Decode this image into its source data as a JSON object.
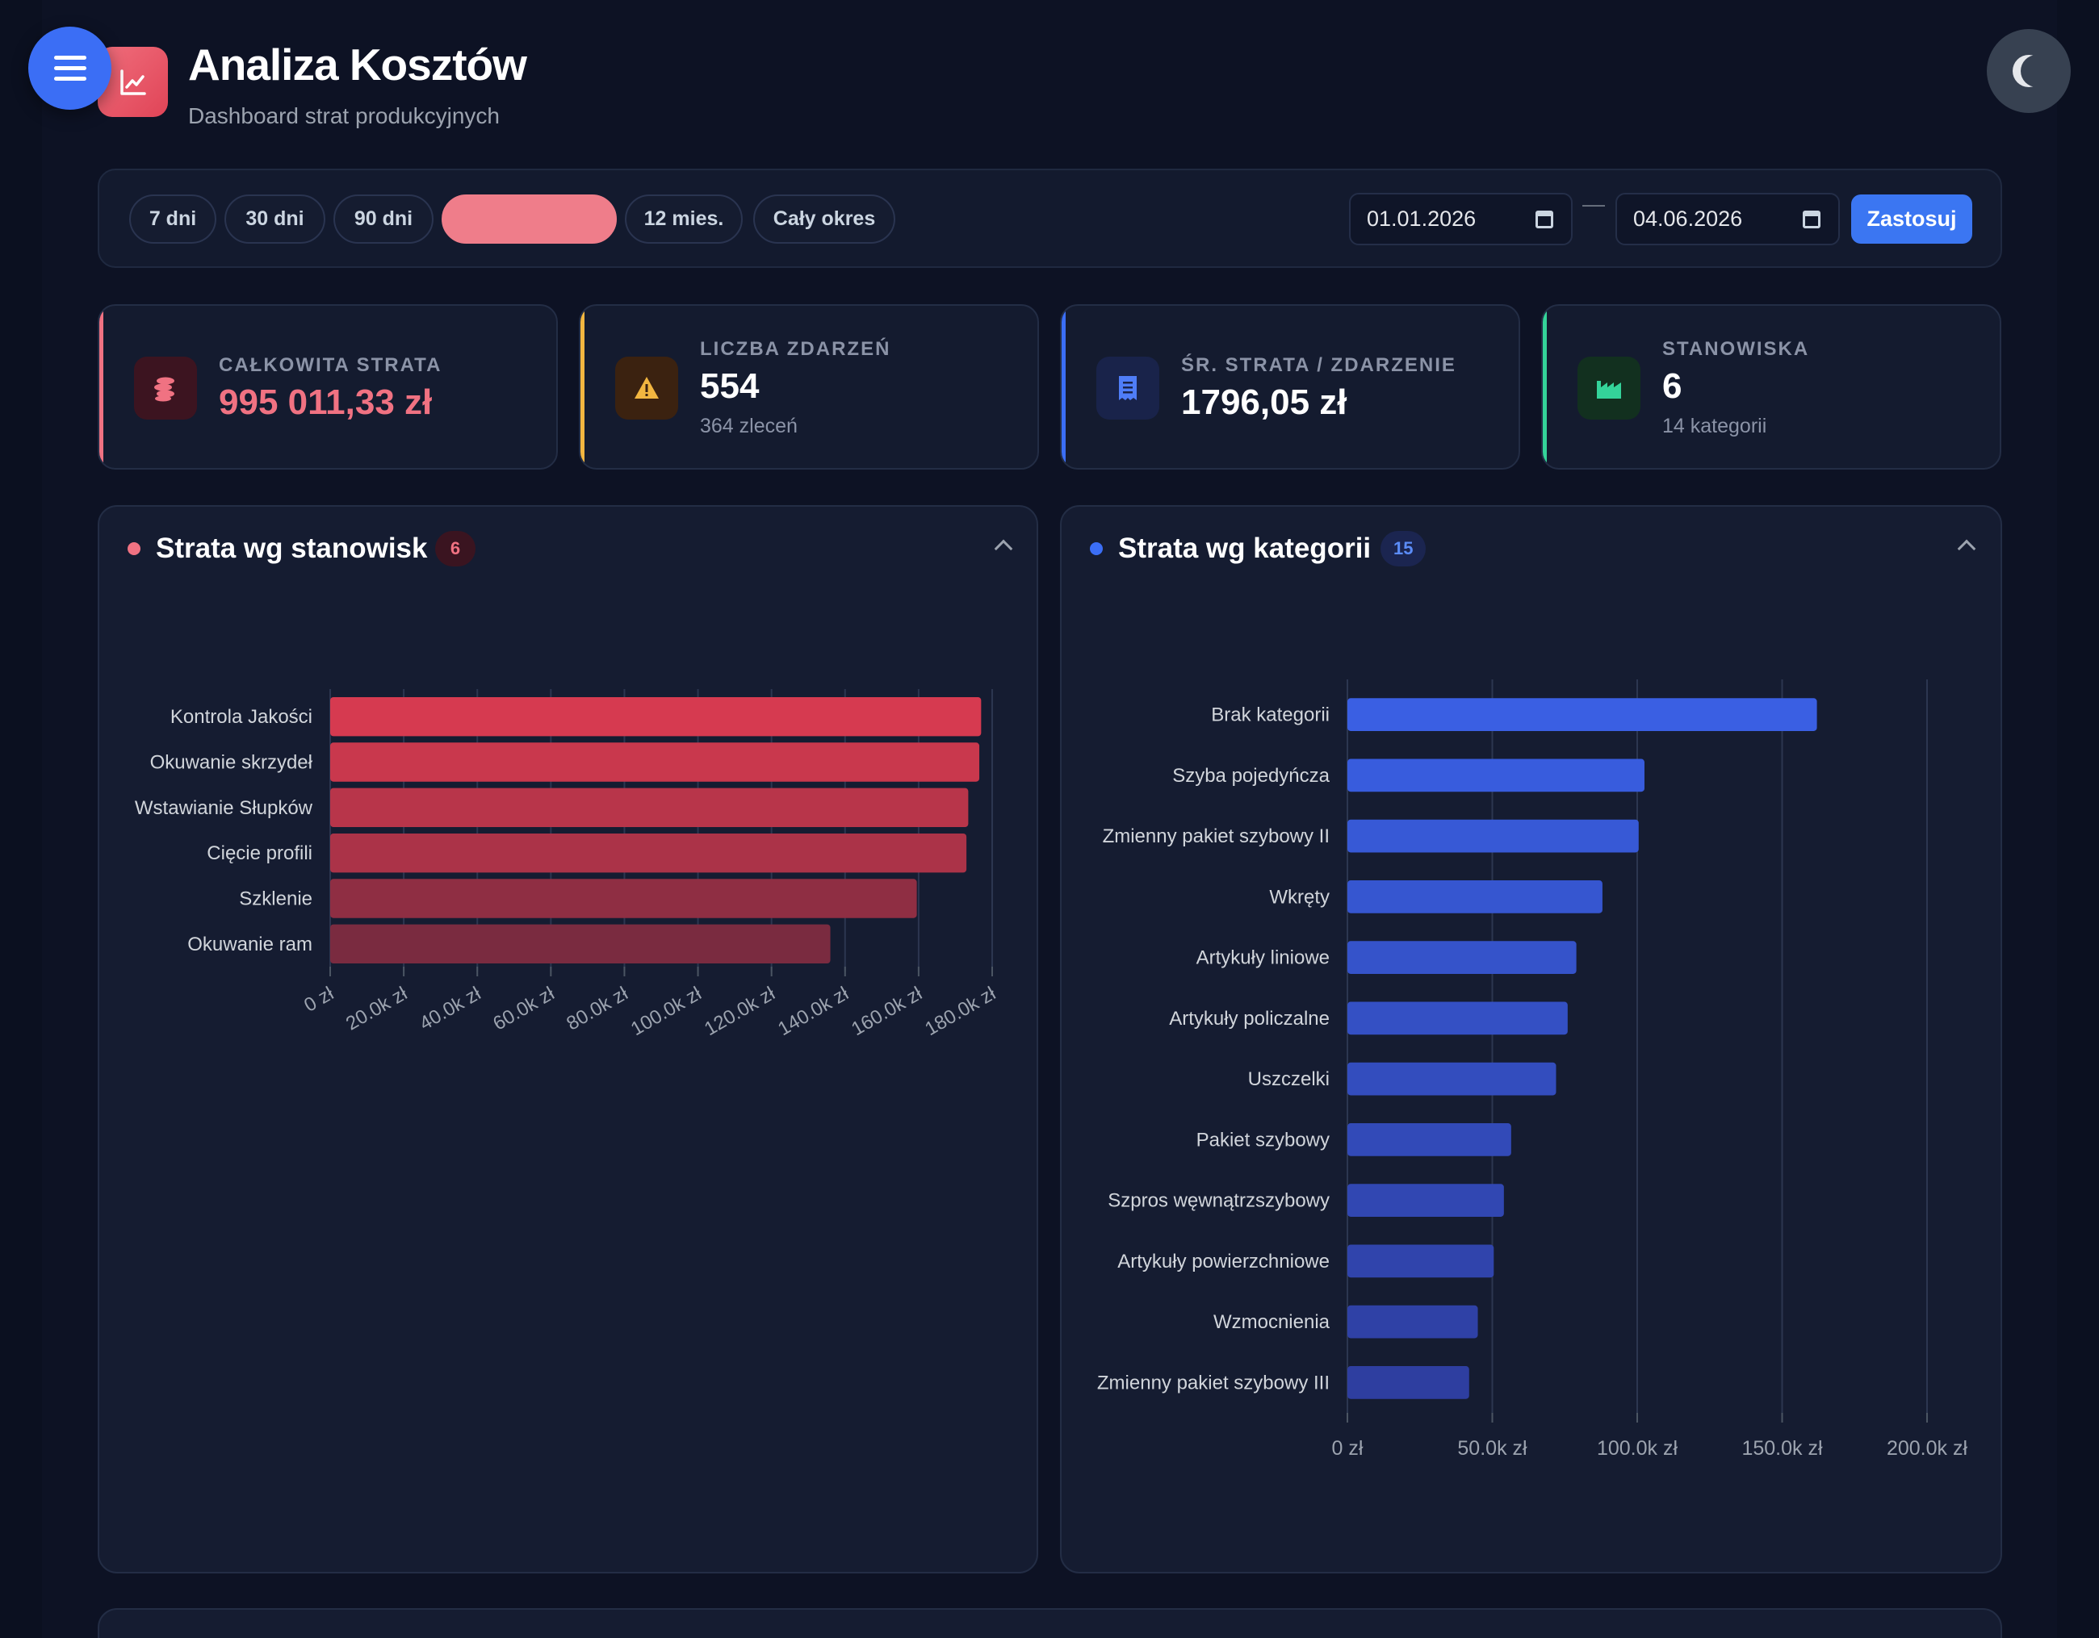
{
  "header": {
    "title": "Analiza Kosztów",
    "subtitle": "Dashboard strat produkcyjnych",
    "menu_icon": "menu-icon",
    "logo_icon": "line-chart-icon",
    "theme_icon": "moon-icon"
  },
  "filters": {
    "periods": [
      {
        "label": "7 dni",
        "active": false
      },
      {
        "label": "30 dni",
        "active": false
      },
      {
        "label": "90 dni",
        "active": false
      },
      {
        "label": "",
        "active": true
      },
      {
        "label": "12 mies.",
        "active": false
      },
      {
        "label": "Cały okres",
        "active": false
      }
    ],
    "date_from": "01.01.2026",
    "date_to": "04.06.2026",
    "separator": "—",
    "apply_label": "Zastosuj"
  },
  "stats": [
    {
      "label": "CAŁKOWITA STRATA",
      "value": "995 011,33 zł",
      "sub": "",
      "icon": "coins-icon",
      "accent": "#f07282"
    },
    {
      "label": "LICZBA ZDARZEŃ",
      "value": "554",
      "sub": "364 zleceń",
      "icon": "warning-icon",
      "accent": "#f2b640"
    },
    {
      "label": "ŚR. STRATA / ZDARZENIE",
      "value": "1796,05 zł",
      "sub": "",
      "icon": "receipt-icon",
      "accent": "#3b6ef5"
    },
    {
      "label": "STANOWISKA",
      "value": "6",
      "sub": "14 kategorii",
      "icon": "factory-icon",
      "accent": "#34d399"
    }
  ],
  "panels": {
    "stations": {
      "title": "Strata wg stanowisk",
      "badge": "6",
      "color": "#f07282"
    },
    "categories": {
      "title": "Strata wg kategorii",
      "badge": "15",
      "color": "#3b6ef5"
    }
  },
  "chart_data": [
    {
      "type": "bar",
      "orientation": "horizontal",
      "categories": [
        "Kontrola Jakości",
        "Okuwanie skrzydeł",
        "Wstawianie Słupków",
        "Cięcie profili",
        "Szklenie",
        "Okuwanie ram"
      ],
      "values": [
        177000,
        176500,
        173500,
        173000,
        159500,
        136000
      ],
      "xlim": [
        0,
        180000
      ],
      "xticks": [
        0,
        20000,
        40000,
        60000,
        80000,
        100000,
        120000,
        140000,
        160000,
        180000
      ],
      "xtick_labels": [
        "0 zł",
        "20.0k zł",
        "40.0k zł",
        "60.0k zł",
        "80.0k zł",
        "100.0k zł",
        "120.0k zł",
        "140.0k zł",
        "160.0k zł",
        "180.0k zł"
      ],
      "grid": true,
      "colors": [
        "#d63a50",
        "#c9384d",
        "#b8354a",
        "#ab3348",
        "#8f2e43",
        "#7a2b40"
      ]
    },
    {
      "type": "bar",
      "orientation": "horizontal",
      "categories": [
        "Brak kategorii",
        "Szyba pojedyńcza",
        "Zmienny pakiet szybowy II",
        "Wkręty",
        "Artykuły liniowe",
        "Artykuły policzalne",
        "Uszczelki",
        "Pakiet szybowy",
        "Szpros węwnątrzszybowy",
        "Artykuły powierzchniowe",
        "Wzmocnienia",
        "Zmienny pakiet szybowy III"
      ],
      "values": [
        162000,
        102500,
        100500,
        88000,
        79000,
        76000,
        72000,
        56500,
        54000,
        50500,
        45000,
        42000
      ],
      "xlim": [
        0,
        200000
      ],
      "xticks": [
        0,
        50000,
        100000,
        150000,
        200000
      ],
      "xtick_labels": [
        "0 zł",
        "50.0k zł",
        "100.0k zł",
        "150.0k zł",
        "200.0k zł"
      ],
      "grid": true,
      "colors": [
        "#3a5fe3",
        "#385cdd",
        "#3759d6",
        "#3656d0",
        "#3553ca",
        "#3450c4",
        "#334dbe",
        "#324ab8",
        "#3147b2",
        "#3044ac",
        "#2f41a6",
        "#2e3ea0"
      ]
    }
  ]
}
